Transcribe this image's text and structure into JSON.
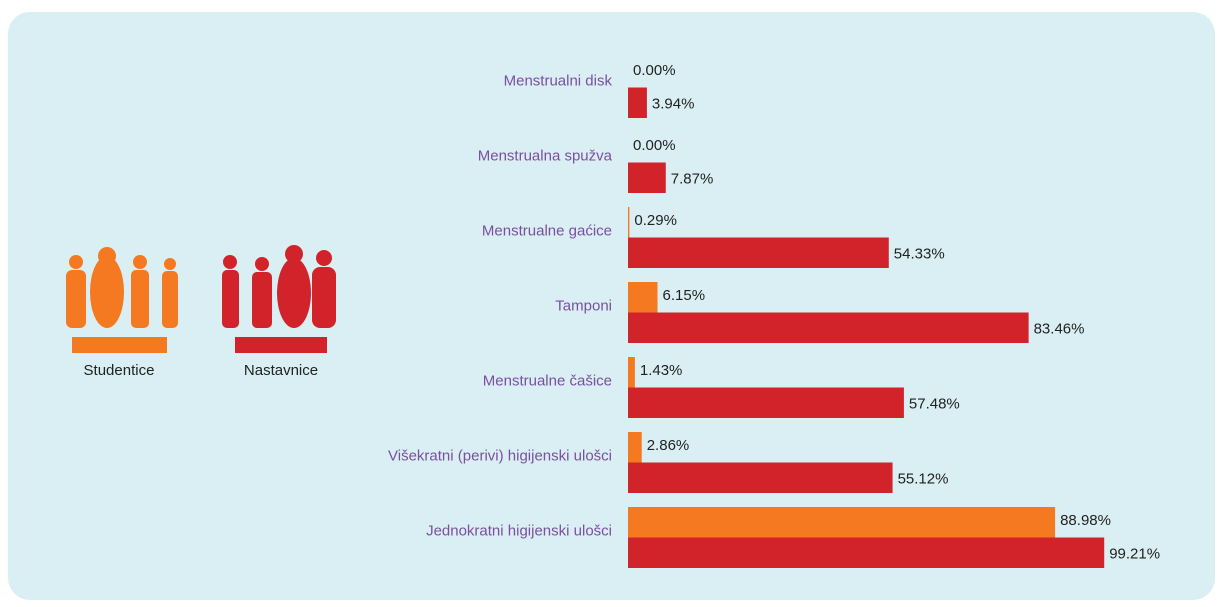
{
  "chart_data": {
    "type": "bar",
    "orientation": "horizontal",
    "categories": [
      "Menstrualni disk",
      "Menstrualna spužva",
      "Menstrualne gaćice",
      "Tamponi",
      "Menstrualne čašice",
      "Višekratni (perivi) higijenski ulošci",
      "Jednokratni higijenski ulošci"
    ],
    "series": [
      {
        "name": "Studentice",
        "color": "#f47920",
        "values": [
          0,
          0,
          0.29,
          6.15,
          1.43,
          2.86,
          88.98
        ],
        "value_labels": [
          "0.00%",
          "0.00%",
          "0.29%",
          "6.15%",
          "1.43%",
          "2.86%",
          "88.98%"
        ]
      },
      {
        "name": "Nastavnice",
        "color": "#d2232a",
        "values": [
          3.94,
          7.87,
          54.33,
          83.46,
          57.48,
          55.12,
          99.21
        ],
        "value_labels": [
          "3.94%",
          "7.87%",
          "54.33%",
          "83.46%",
          "57.48%",
          "55.12%",
          "99.21%"
        ]
      }
    ],
    "xlim": [
      0,
      100
    ]
  }
}
